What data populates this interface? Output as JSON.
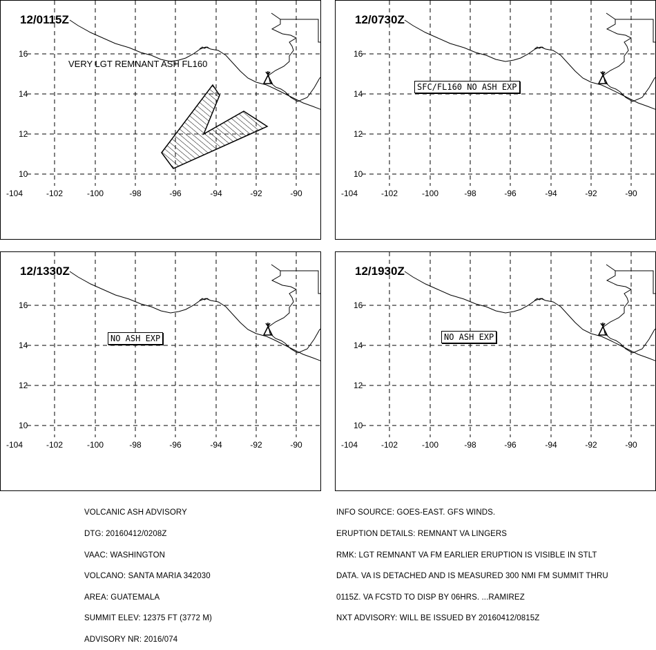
{
  "panels": [
    {
      "time": "12/0115Z",
      "label": "VERY LGT REMNANT ASH FL160",
      "boxed": false,
      "polygon": true
    },
    {
      "time": "12/0730Z",
      "label": "SFC/FL160  NO  ASH  EXP",
      "boxed": true,
      "polygon": false
    },
    {
      "time": "12/1330Z",
      "label": "NO  ASH  EXP",
      "boxed": true,
      "polygon": false
    },
    {
      "time": "12/1930Z",
      "label": "NO  ASH  EXP",
      "boxed": true,
      "polygon": false
    }
  ],
  "axes": {
    "x_ticks": [
      "-104",
      "-102",
      "-100",
      "-98",
      "-96",
      "-94",
      "-92",
      "-90"
    ],
    "y_ticks": [
      "16",
      "14",
      "12",
      "10"
    ]
  },
  "symbols": {
    "volcano": "volcano-icon"
  },
  "advisory_left": [
    "VOLCANIC ASH ADVISORY",
    "DTG: 20160412/0208Z",
    "VAAC: WASHINGTON",
    "VOLCANO: SANTA MARIA 342030",
    "AREA: GUATEMALA",
    "SUMMIT ELEV: 12375 FT (3772 M)",
    "ADVISORY NR: 2016/074"
  ],
  "advisory_right": [
    "INFO SOURCE: GOES-EAST. GFS WINDS.",
    "ERUPTION DETAILS: REMNANT VA LINGERS",
    "RMK: LGT REMNANT VA FM EARLIER ERUPTION IS VISIBLE IN STLT",
    "DATA. VA IS DETACHED AND IS MEASURED 300 NMI FM SUMMIT THRU",
    "0115Z. VA FCSTD TO DISP BY 06HRS. ...RAMIREZ",
    "NXT ADVISORY: WILL BE ISSUED BY 20160412/0815Z"
  ]
}
